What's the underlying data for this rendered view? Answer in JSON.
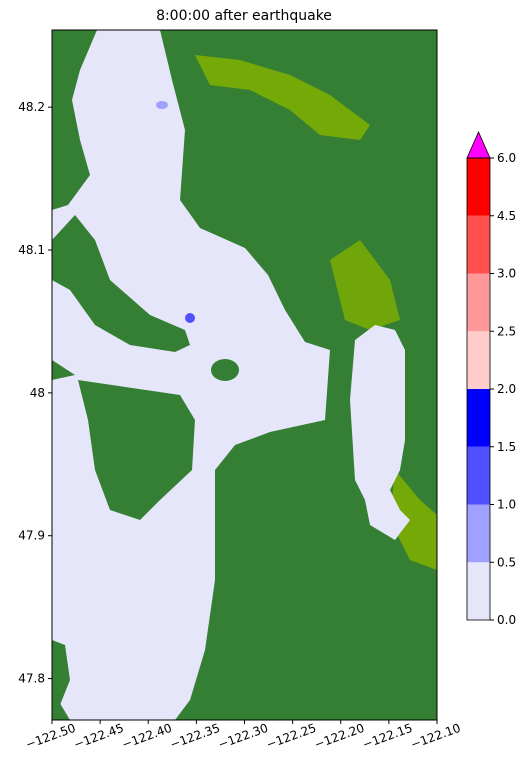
{
  "chart_data": {
    "type": "map",
    "title": "8:00:00 after earthquake",
    "xlim": [
      -122.5,
      -122.1
    ],
    "ylim": [
      47.771,
      48.254
    ],
    "xticks": [
      {
        "value": -122.5,
        "label": "−122.50"
      },
      {
        "value": -122.45,
        "label": "−122.45"
      },
      {
        "value": -122.4,
        "label": "−122.40"
      },
      {
        "value": -122.35,
        "label": "−122.35"
      },
      {
        "value": -122.3,
        "label": "−122.30"
      },
      {
        "value": -122.25,
        "label": "−122.25"
      },
      {
        "value": -122.2,
        "label": "−122.20"
      },
      {
        "value": -122.15,
        "label": "−122.15"
      },
      {
        "value": -122.1,
        "label": "−122.10"
      }
    ],
    "yticks": [
      47.8,
      47.9,
      48.0,
      48.1,
      48.2
    ],
    "colorbar": {
      "ticks": [
        {
          "value": 0,
          "label": "0.0"
        },
        {
          "value": 0.5,
          "label": "0.5"
        },
        {
          "value": 1,
          "label": "1.0"
        },
        {
          "value": 1.5,
          "label": "1.5"
        },
        {
          "value": 2,
          "label": "2.0"
        },
        {
          "value": 2.5,
          "label": "2.5"
        },
        {
          "value": 3,
          "label": "3.0"
        },
        {
          "value": 4.5,
          "label": "4.5"
        },
        {
          "value": 6,
          "label": "6.0"
        }
      ],
      "colors": [
        "#e6e6fa",
        "#a0a0ff",
        "#5050ff",
        "#0000ff",
        "#ffcccc",
        "#ff9999",
        "#ff5050",
        "#ff0000"
      ],
      "extend_color": "#ff00ff"
    }
  }
}
